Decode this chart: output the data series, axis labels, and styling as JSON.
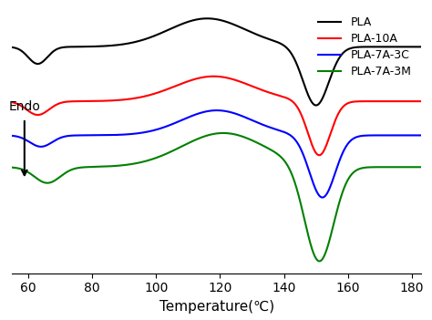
{
  "title": "",
  "xlabel": "Temperature(℃)",
  "ylabel": "Endo",
  "xlim": [
    55,
    183
  ],
  "ylim": [
    -1.0,
    1.0
  ],
  "legend_labels": [
    "PLA",
    "PLA-10A",
    "PLA-7A-3C",
    "PLA-7A-3M"
  ],
  "colors": [
    "black",
    "red",
    "blue",
    "green"
  ],
  "background_color": "white"
}
